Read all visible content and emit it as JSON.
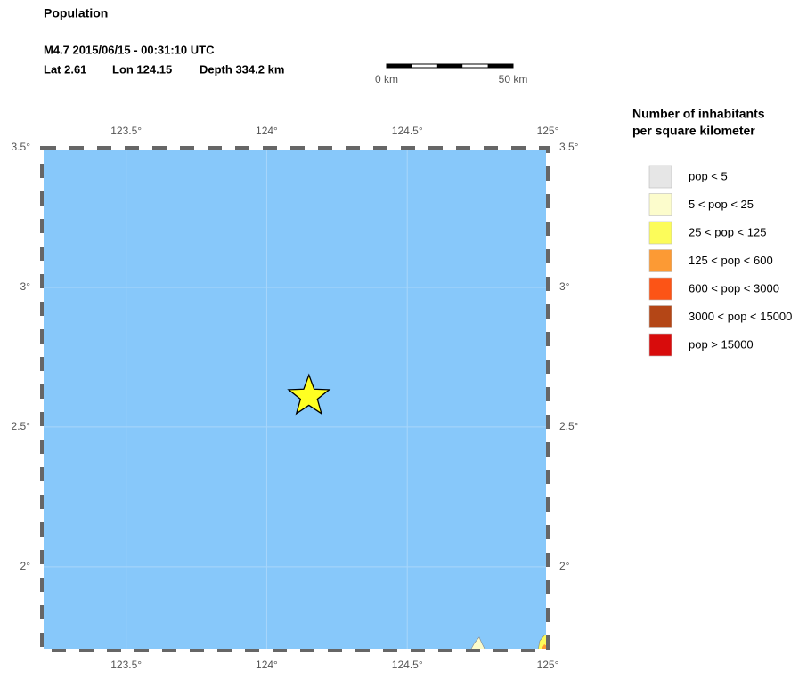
{
  "header": {
    "title": "Population",
    "event": "M4.7  2015/06/15 - 00:31:10 UTC",
    "lat": "Lat  2.61",
    "lon": "Lon 124.15",
    "depth": "Depth 334.2 km"
  },
  "scale_bar": {
    "left": "0 km",
    "right": "50 km"
  },
  "map": {
    "lonlim": [
      123.2,
      125
    ],
    "latlim": [
      1.7,
      3.5
    ],
    "lonticks": [
      {
        "value": 123.5,
        "label": "123.5°"
      },
      {
        "value": 124,
        "label": "124°"
      },
      {
        "value": 124.5,
        "label": "124.5°"
      },
      {
        "value": 125,
        "label": "125°"
      }
    ],
    "latticks": [
      {
        "value": 3.5,
        "label": "3.5°"
      },
      {
        "value": 3,
        "label": "3°"
      },
      {
        "value": 2.5,
        "label": "2.5°"
      },
      {
        "value": 2,
        "label": "2°"
      }
    ],
    "epicenter": {
      "lat": 2.61,
      "lon": 124.15
    }
  },
  "legend": {
    "title": [
      "Number of inhabitants",
      "per square kilometer"
    ],
    "items": [
      {
        "label": "pop < 5",
        "color": "#e6e6e6"
      },
      {
        "label": "5 < pop < 25",
        "color": "#fcfccc"
      },
      {
        "label": "25 < pop < 125",
        "color": "#fcfc5a"
      },
      {
        "label": "125 < pop < 600",
        "color": "#fc9a34"
      },
      {
        "label": "600 < pop < 3000",
        "color": "#fc5416"
      },
      {
        "label": "3000 < pop < 15000",
        "color": "#b44616"
      },
      {
        "label": "pop > 15000",
        "color": "#d80c0c"
      }
    ]
  }
}
